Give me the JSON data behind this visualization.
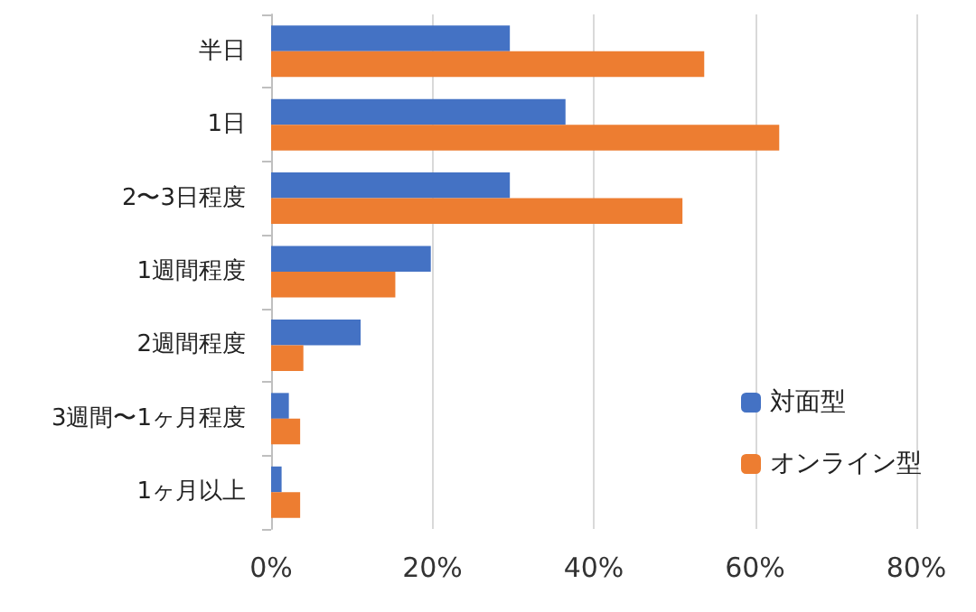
{
  "chart_data": {
    "type": "bar",
    "orientation": "horizontal",
    "categories": [
      "半日",
      "1日",
      "2〜3日程度",
      "1週間程度",
      "2週間程度",
      "3週間〜1ヶ月程度",
      "1ヶ月以上"
    ],
    "series": [
      {
        "name": "対面型",
        "color": "#4472c4",
        "values": [
          29.6,
          36.5,
          29.6,
          19.8,
          11.1,
          2.2,
          1.3
        ]
      },
      {
        "name": "オンライン型",
        "color": "#ed7d31",
        "values": [
          53.7,
          63.0,
          51.0,
          15.4,
          4.0,
          3.6,
          3.6
        ]
      }
    ],
    "xlim": [
      0,
      80
    ],
    "xticks": [
      {
        "value": 0,
        "label": "0%"
      },
      {
        "value": 20,
        "label": "20%"
      },
      {
        "value": 40,
        "label": "40%"
      },
      {
        "value": 60,
        "label": "60%"
      },
      {
        "value": 80,
        "label": "80%"
      }
    ],
    "grid": "x",
    "legend": "bottom right"
  }
}
